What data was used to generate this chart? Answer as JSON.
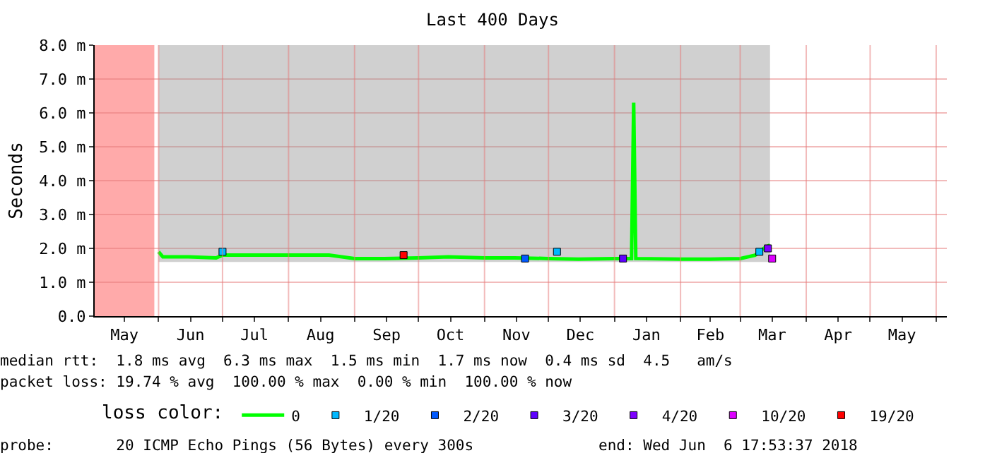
{
  "chart_data": {
    "type": "line",
    "title": "Last 400 Days",
    "ylabel": "Seconds",
    "xlim": [
      "2017-05-02",
      "2018-06-06"
    ],
    "xticks": [
      {
        "value": "2017-05-16",
        "label": "May"
      },
      {
        "value": "2017-06-01",
        "label": null
      },
      {
        "value": "2017-06-16",
        "label": "Jun"
      },
      {
        "value": "2017-07-01",
        "label": null
      },
      {
        "value": "2017-07-16",
        "label": "Jul"
      },
      {
        "value": "2017-08-01",
        "label": null
      },
      {
        "value": "2017-08-16",
        "label": "Aug"
      },
      {
        "value": "2017-09-01",
        "label": null
      },
      {
        "value": "2017-09-16",
        "label": "Sep"
      },
      {
        "value": "2017-10-01",
        "label": null
      },
      {
        "value": "2017-10-16",
        "label": "Oct"
      },
      {
        "value": "2017-11-01",
        "label": null
      },
      {
        "value": "2017-11-16",
        "label": "Nov"
      },
      {
        "value": "2017-12-01",
        "label": null
      },
      {
        "value": "2017-12-16",
        "label": "Dec"
      },
      {
        "value": "2018-01-01",
        "label": null
      },
      {
        "value": "2018-01-16",
        "label": "Jan"
      },
      {
        "value": "2018-02-01",
        "label": null
      },
      {
        "value": "2018-02-15",
        "label": "Feb"
      },
      {
        "value": "2018-03-01",
        "label": null
      },
      {
        "value": "2018-03-16",
        "label": "Mar"
      },
      {
        "value": "2018-04-01",
        "label": null
      },
      {
        "value": "2018-04-16",
        "label": "Apr"
      },
      {
        "value": "2018-05-01",
        "label": null
      },
      {
        "value": "2018-05-16",
        "label": "May"
      },
      {
        "value": "2018-06-01",
        "label": null
      }
    ],
    "ylim": [
      0,
      8
    ],
    "yticks": [
      {
        "value": 0,
        "label": "0.0"
      },
      {
        "value": 1,
        "label": "1.0 m"
      },
      {
        "value": 2,
        "label": "2.0 m"
      },
      {
        "value": 3,
        "label": "3.0 m"
      },
      {
        "value": 4,
        "label": "4.0 m"
      },
      {
        "value": 5,
        "label": "5.0 m"
      },
      {
        "value": 6,
        "label": "6.0 m"
      },
      {
        "value": 7,
        "label": "7.0 m"
      },
      {
        "value": 8,
        "label": "8.0 m"
      }
    ],
    "grid": true,
    "legend": "bottom",
    "legend_title": "loss color:",
    "series": [
      {
        "name": "0",
        "color": "#00ff00",
        "marker": "none",
        "x": [
          "2017-06-01",
          "2017-06-03",
          "2017-06-15",
          "2017-06-28",
          "2017-07-01",
          "2017-07-15",
          "2017-08-01",
          "2017-08-20",
          "2017-09-01",
          "2017-09-15",
          "2017-10-01",
          "2017-10-15",
          "2017-11-01",
          "2017-11-15",
          "2017-12-01",
          "2017-12-15",
          "2018-01-01",
          "2018-01-09",
          "2018-01-10",
          "2018-01-11",
          "2018-02-01",
          "2018-02-15",
          "2018-03-01",
          "2018-03-08",
          "2018-03-12",
          "2018-03-15"
        ],
        "values": [
          1.9,
          1.75,
          1.75,
          1.72,
          1.8,
          1.8,
          1.8,
          1.8,
          1.7,
          1.7,
          1.72,
          1.75,
          1.72,
          1.72,
          1.7,
          1.68,
          1.7,
          1.7,
          6.3,
          1.7,
          1.68,
          1.68,
          1.7,
          1.8,
          2.0,
          2.1
        ],
        "lower": [
          1.6,
          1.6,
          1.6,
          1.6,
          1.6,
          1.6,
          1.6,
          1.6,
          1.6,
          1.6,
          1.6,
          1.6,
          1.6,
          1.6,
          1.6,
          1.6,
          1.6,
          1.6,
          1.6,
          1.6,
          1.6,
          1.6,
          1.6,
          1.6,
          1.6,
          1.6
        ],
        "upper": [
          8,
          8,
          8,
          8,
          8,
          8,
          8,
          8,
          8,
          8,
          8,
          8,
          8,
          8,
          8,
          8,
          8,
          8,
          8,
          8,
          8,
          8,
          8,
          8,
          8,
          8
        ]
      },
      {
        "name": "1/20",
        "type": "scatter",
        "color": "#00b8ff",
        "x": [
          "2017-07-01",
          "2017-12-05",
          "2018-03-10"
        ],
        "values": [
          1.9,
          1.9,
          1.9
        ]
      },
      {
        "name": "2/20",
        "type": "scatter",
        "color": "#0059ff",
        "x": [
          "2017-11-20"
        ],
        "values": [
          1.7
        ]
      },
      {
        "name": "3/20",
        "type": "scatter",
        "color": "#5e00ff",
        "x": [
          "2018-01-05"
        ],
        "values": [
          1.7
        ]
      },
      {
        "name": "4/20",
        "type": "scatter",
        "color": "#7e00ff",
        "x": [
          "2018-03-14"
        ],
        "values": [
          2.0
        ]
      },
      {
        "name": "10/20",
        "type": "scatter",
        "color": "#dd00ff",
        "x": [
          "2018-03-16"
        ],
        "values": [
          1.7
        ]
      },
      {
        "name": "19/20",
        "type": "scatter",
        "color": "#ff0000",
        "x": [
          "2017-09-24"
        ],
        "values": [
          1.8
        ]
      }
    ],
    "marker": "square",
    "bands": [
      {
        "axis": "x",
        "from": "2017-05-02",
        "to": "2017-05-30",
        "color": "#ffaaaa"
      }
    ],
    "annotations": [
      "median rtt:  1.8 ms avg  6.3 ms max  1.5 ms min  1.7 ms now  0.4 ms sd  4.5   am/s",
      "packet loss: 19.74 % avg  100.00 % max  0.00 % min  100.00 % now",
      "probe:       20 ICMP Echo Pings (56 Bytes) every 300s              end: Wed Jun  6 17:53:37 2018"
    ]
  }
}
